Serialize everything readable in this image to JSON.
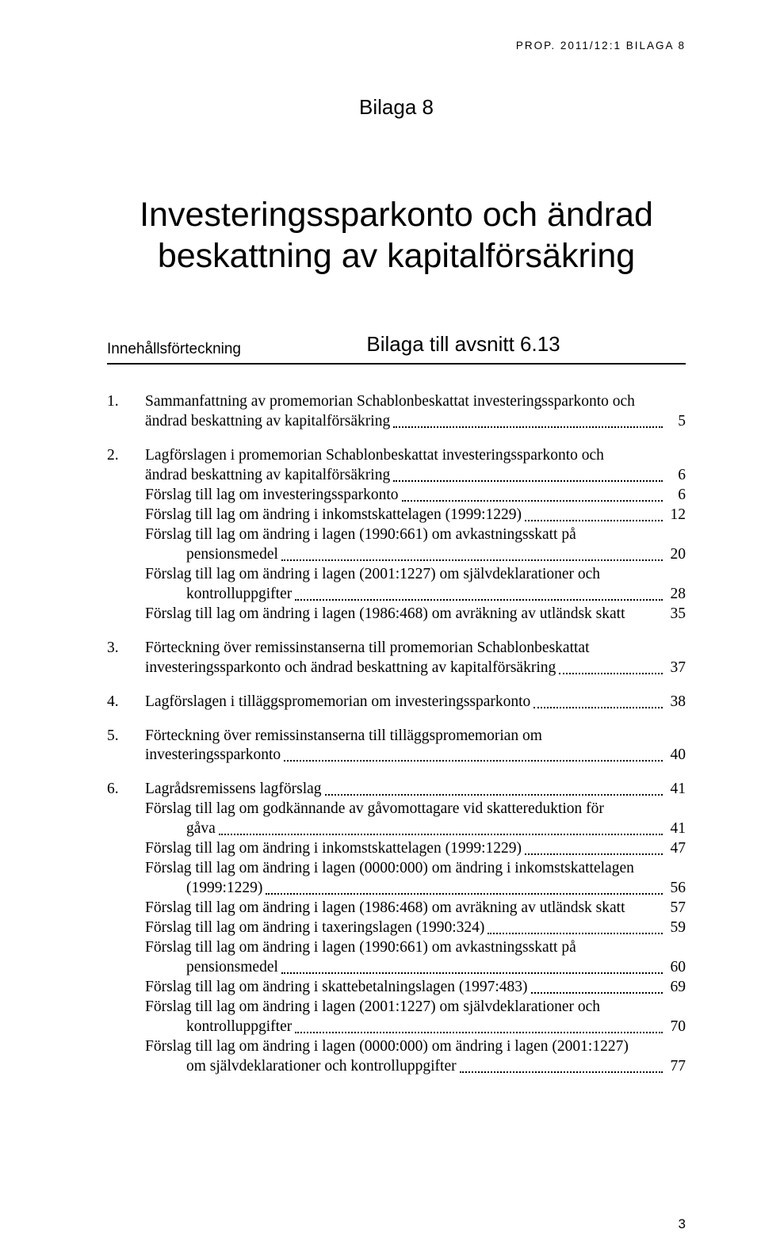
{
  "running_header": "PROP. 2011/12:1 BILAGA 8",
  "appendix_label": "Bilaga 8",
  "title_line1": "Investeringssparkonto och ändrad",
  "title_line2": "beskattning av kapitalförsäkring",
  "toc_label": "Innehållsförteckning",
  "subtitle": "Bilaga till avsnitt 6.13",
  "page_number": "3",
  "toc": {
    "item1": {
      "num": "1.",
      "text1": "Sammanfattning av promemorian Schablonbeskattat investeringssparkonto och",
      "text2": "ändrad beskattning av kapitalförsäkring",
      "page": "5"
    },
    "item2": {
      "num": "2.",
      "line1a": "Lagförslagen i promemorian Schablonbeskattat investeringssparkonto och",
      "line1b": "ändrad beskattning av kapitalförsäkring",
      "line1page": "6",
      "line2": "Förslag till lag om investeringssparkonto",
      "line2page": "6",
      "line3": "Förslag till lag om ändring i inkomstskattelagen (1999:1229)",
      "line3page": "12",
      "line4a": "Förslag till lag om ändring i lagen (1990:661) om avkastningsskatt på",
      "line4b": "pensionsmedel",
      "line4page": "20",
      "line5a": "Förslag till lag om ändring i lagen (2001:1227) om självdeklarationer och",
      "line5b": "kontrolluppgifter",
      "line5page": "28",
      "line6": "Förslag till lag om ändring i lagen (1986:468) om avräkning av utländsk skatt",
      "line6page": "35"
    },
    "item3": {
      "num": "3.",
      "text1": "Förteckning över remissinstanserna till promemorian Schablonbeskattat",
      "text2": "investeringssparkonto och ändrad beskattning av kapitalförsäkring",
      "page": "37"
    },
    "item4": {
      "num": "4.",
      "text": "Lagförslagen i tilläggspromemorian om investeringssparkonto",
      "page": "38"
    },
    "item5": {
      "num": "5.",
      "text1": "Förteckning över remissinstanserna till tilläggspromemorian om",
      "text2": "investeringssparkonto",
      "page": "40"
    },
    "item6": {
      "num": "6.",
      "line1": "Lagrådsremissens lagförslag",
      "line1page": "41",
      "line2a": "Förslag till lag om godkännande av gåvomottagare vid skattereduktion för",
      "line2b": "gåva",
      "line2page": "41",
      "line3": "Förslag till lag om ändring i inkomstskattelagen (1999:1229)",
      "line3page": "47",
      "line4a": "Förslag till lag om ändring i lagen (0000:000) om ändring i inkomstskattelagen",
      "line4b": "(1999:1229)",
      "line4page": "56",
      "line5": "Förslag till lag om ändring i lagen (1986:468) om avräkning av utländsk skatt",
      "line5page": "57",
      "line6": "Förslag till lag om ändring i taxeringslagen (1990:324)",
      "line6page": "59",
      "line7a": "Förslag till lag om ändring i lagen (1990:661) om avkastningsskatt på",
      "line7b": "pensionsmedel",
      "line7page": "60",
      "line8": "Förslag till lag om ändring i skattebetalningslagen (1997:483)",
      "line8page": "69",
      "line9a": "Förslag till lag om ändring i lagen (2001:1227) om självdeklarationer och",
      "line9b": "kontrolluppgifter",
      "line9page": "70",
      "line10a": "Förslag till lag om ändring i lagen (0000:000) om ändring i lagen (2001:1227)",
      "line10b": "om självdeklarationer och kontrolluppgifter",
      "line10page": "77"
    }
  }
}
